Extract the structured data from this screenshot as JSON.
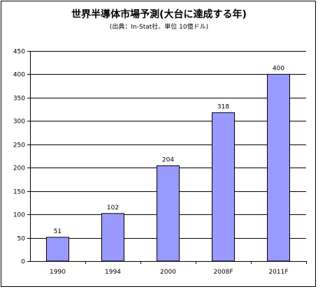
{
  "chart_data": {
    "type": "bar",
    "title": "世界半導体市場予測(大台に達成する年)",
    "subtitle": "(出典：In-Stat社、単位 10億ドル)",
    "xlabel": "",
    "ylabel": "",
    "categories": [
      "1990",
      "1994",
      "2000",
      "2008F",
      "2011F"
    ],
    "values": [
      51,
      102,
      204,
      318,
      400
    ],
    "data_labels": [
      "51",
      "102",
      "204",
      "318",
      "400"
    ],
    "ylim": [
      0,
      450
    ],
    "yticks": [
      0,
      50,
      100,
      150,
      200,
      250,
      300,
      350,
      400,
      450
    ],
    "grid": true,
    "legend": "none",
    "colors": {
      "bar_fill": "#9999ff",
      "bar_stroke": "#000000",
      "plot_background": "#ffffff",
      "gridline": "#000000"
    }
  }
}
